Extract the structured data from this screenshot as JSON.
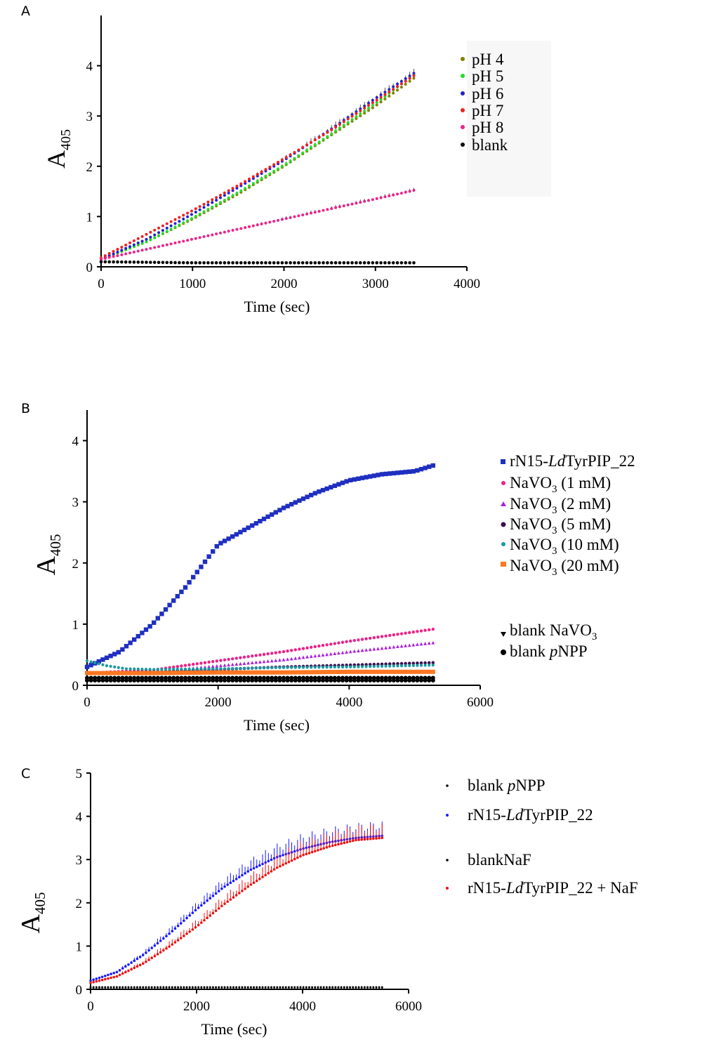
{
  "chart_data": [
    {
      "panel": "A",
      "type": "scatter",
      "xlabel": "Time (sec)",
      "ylabel": "A",
      "ylabel_sub": "405",
      "xlim": [
        0,
        4000
      ],
      "ylim": [
        0,
        5
      ],
      "xticks": [
        0,
        1000,
        2000,
        3000,
        4000
      ],
      "yticks": [
        0,
        1,
        2,
        3,
        4
      ],
      "legend_position": "right",
      "series": [
        {
          "name": "pH 4",
          "color": "#808000",
          "x": [
            0,
            500,
            1000,
            1500,
            2000,
            2500,
            3000,
            3420
          ],
          "values": [
            0.15,
            0.5,
            0.95,
            1.45,
            2.0,
            2.6,
            3.2,
            3.75
          ]
        },
        {
          "name": "pH 5",
          "color": "#22dd22",
          "x": [
            0,
            500,
            1000,
            1500,
            2000,
            2500,
            3000,
            3420
          ],
          "values": [
            0.15,
            0.5,
            0.97,
            1.48,
            2.02,
            2.62,
            3.25,
            3.82
          ]
        },
        {
          "name": "pH 6",
          "color": "#2222cc",
          "x": [
            0,
            500,
            1000,
            1500,
            2000,
            2500,
            3000,
            3420
          ],
          "values": [
            0.15,
            0.55,
            1.05,
            1.58,
            2.12,
            2.72,
            3.35,
            3.85
          ]
        },
        {
          "name": "pH 7",
          "color": "#ee2222",
          "x": [
            0,
            500,
            1000,
            1500,
            2000,
            2500,
            3000,
            3420
          ],
          "values": [
            0.18,
            0.65,
            1.12,
            1.62,
            2.15,
            2.7,
            3.3,
            3.8
          ]
        },
        {
          "name": "pH 8",
          "color": "#ee2288",
          "x": [
            0,
            500,
            1000,
            1500,
            2000,
            2500,
            3000,
            3420
          ],
          "values": [
            0.15,
            0.35,
            0.55,
            0.75,
            0.95,
            1.15,
            1.35,
            1.52
          ]
        },
        {
          "name": "blank",
          "color": "#000000",
          "x": [
            0,
            500,
            1000,
            1500,
            2000,
            2500,
            3000,
            3420
          ],
          "values": [
            0.1,
            0.09,
            0.08,
            0.08,
            0.08,
            0.08,
            0.08,
            0.08
          ]
        }
      ]
    },
    {
      "panel": "B",
      "type": "scatter",
      "xlabel": "Time (sec)",
      "ylabel": "A",
      "ylabel_sub": "405",
      "xlim": [
        0,
        6000
      ],
      "ylim": [
        0,
        4.5
      ],
      "xticks": [
        0,
        2000,
        4000,
        6000
      ],
      "yticks": [
        0,
        1,
        2,
        3,
        4
      ],
      "legend_position": "right",
      "series": [
        {
          "name": "rN15-LdTyrPIP_22",
          "color": "#1f2fc0",
          "x": [
            0,
            500,
            1000,
            1500,
            2000,
            2500,
            3000,
            3500,
            4000,
            4500,
            5000,
            5300
          ],
          "values": [
            0.3,
            0.55,
            1.0,
            1.6,
            2.3,
            2.6,
            2.9,
            3.15,
            3.35,
            3.45,
            3.5,
            3.6
          ]
        },
        {
          "name": "NaVO3 (1 mM)",
          "color": "#ee2288",
          "x": [
            0,
            1000,
            2000,
            3000,
            4000,
            5300
          ],
          "values": [
            0.2,
            0.25,
            0.4,
            0.55,
            0.72,
            0.92
          ]
        },
        {
          "name": "NaVO3 (2 mM)",
          "color": "#aa22dd",
          "x": [
            0,
            1000,
            2000,
            3000,
            4000,
            5300
          ],
          "values": [
            0.2,
            0.22,
            0.32,
            0.42,
            0.55,
            0.7
          ]
        },
        {
          "name": "NaVO3 (5 mM)",
          "color": "#3a1050",
          "x": [
            0,
            1000,
            2000,
            3000,
            4000,
            5300
          ],
          "values": [
            0.2,
            0.22,
            0.26,
            0.3,
            0.33,
            0.37
          ]
        },
        {
          "name": "NaVO3 (10 mM)",
          "color": "#1a9aa0",
          "x": [
            0,
            300,
            600,
            1000,
            2000,
            3000,
            4000,
            5300
          ],
          "values": [
            0.4,
            0.32,
            0.27,
            0.26,
            0.27,
            0.29,
            0.3,
            0.33
          ]
        },
        {
          "name": "NaVO3 (20 mM)",
          "color": "#ff7722",
          "x": [
            0,
            1000,
            2000,
            3000,
            4000,
            5300
          ],
          "values": [
            0.2,
            0.2,
            0.21,
            0.21,
            0.22,
            0.22
          ]
        },
        {
          "name": "blank NaVO3",
          "color": "#000000",
          "x": [
            0,
            1000,
            2000,
            3000,
            4000,
            5300
          ],
          "values": [
            0.12,
            0.12,
            0.12,
            0.12,
            0.12,
            0.12
          ]
        },
        {
          "name": "blank pNPP",
          "color": "#000000",
          "x": [
            0,
            1000,
            2000,
            3000,
            4000,
            5300
          ],
          "values": [
            0.08,
            0.08,
            0.08,
            0.08,
            0.08,
            0.08
          ]
        }
      ]
    },
    {
      "panel": "C",
      "type": "scatter",
      "xlabel": "Time (sec)",
      "ylabel": "A",
      "ylabel_sub": "405",
      "xlim": [
        0,
        6000
      ],
      "ylim": [
        0,
        5
      ],
      "xticks": [
        0,
        2000,
        4000,
        6000
      ],
      "yticks": [
        0,
        1,
        2,
        3,
        4,
        5
      ],
      "legend_position": "right",
      "series": [
        {
          "name": "blank pNPP",
          "color": "#000000",
          "x": [
            0,
            1000,
            2000,
            3000,
            4000,
            5500
          ],
          "values": [
            0.05,
            0.05,
            0.05,
            0.05,
            0.05,
            0.05
          ]
        },
        {
          "name": "rN15-LdTyrPIP_22",
          "color": "#1a1aff",
          "x": [
            0,
            500,
            1000,
            1500,
            2000,
            2500,
            3000,
            3500,
            4000,
            4500,
            5000,
            5500
          ],
          "values": [
            0.2,
            0.4,
            0.8,
            1.3,
            1.85,
            2.35,
            2.75,
            3.05,
            3.25,
            3.4,
            3.5,
            3.55
          ]
        },
        {
          "name": "blankNaF",
          "color": "#000000",
          "x": [
            0,
            1000,
            2000,
            3000,
            4000,
            5500
          ],
          "values": [
            0.04,
            0.04,
            0.04,
            0.04,
            0.04,
            0.04
          ]
        },
        {
          "name": "rN15-LdTyrPIP_22 + NaF",
          "color": "#ee1111",
          "x": [
            0,
            500,
            1000,
            1500,
            2000,
            2500,
            3000,
            3500,
            4000,
            4500,
            5000,
            5500
          ],
          "values": [
            0.15,
            0.3,
            0.6,
            1.0,
            1.45,
            1.95,
            2.4,
            2.8,
            3.1,
            3.3,
            3.45,
            3.5
          ]
        }
      ]
    }
  ],
  "panels": {
    "a": {
      "label": "A",
      "legend": [
        "pH 4",
        "pH 5",
        "pH 6",
        "pH 7",
        "pH 8",
        "blank"
      ]
    },
    "b": {
      "label": "B",
      "legend": [
        {
          "pre": "rN15-",
          "ital": "Ld",
          "post": "TyrPIP_22"
        },
        {
          "base": "NaVO",
          "sub": "3",
          "rest": " (1 mM)"
        },
        {
          "base": "NaVO",
          "sub": "3",
          "rest": " (2 mM)"
        },
        {
          "base": "NaVO",
          "sub": "3",
          "rest": " (5 mM)"
        },
        {
          "base": "NaVO",
          "sub": "3",
          "rest": " (10 mM)"
        },
        {
          "base": "NaVO",
          "sub": "3",
          "rest": " (20 mM)"
        },
        {
          "pre": "blank ",
          "base": "NaVO",
          "sub": "3"
        },
        {
          "pre": "blank ",
          "ital": "p",
          "post": "NPP"
        }
      ]
    },
    "c": {
      "label": "C",
      "legend": [
        {
          "pre": "blank ",
          "ital": "p",
          "post": "NPP"
        },
        {
          "pre": "rN15-",
          "ital": "Ld",
          "post": "TyrPIP_22"
        },
        {
          "pre": "blankNaF",
          "ital": "",
          "post": ""
        },
        {
          "pre": "rN15-",
          "ital": "Ld",
          "post": "TyrPIP_22 + NaF"
        }
      ]
    }
  }
}
